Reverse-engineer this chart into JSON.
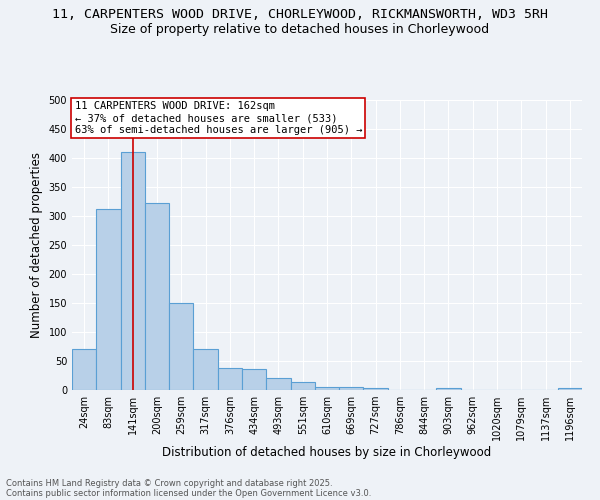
{
  "title_line1": "11, CARPENTERS WOOD DRIVE, CHORLEYWOOD, RICKMANSWORTH, WD3 5RH",
  "title_line2": "Size of property relative to detached houses in Chorleywood",
  "xlabel": "Distribution of detached houses by size in Chorleywood",
  "ylabel": "Number of detached properties",
  "categories": [
    "24sqm",
    "83sqm",
    "141sqm",
    "200sqm",
    "259sqm",
    "317sqm",
    "376sqm",
    "434sqm",
    "493sqm",
    "551sqm",
    "610sqm",
    "669sqm",
    "727sqm",
    "786sqm",
    "844sqm",
    "903sqm",
    "962sqm",
    "1020sqm",
    "1079sqm",
    "1137sqm",
    "1196sqm"
  ],
  "values": [
    70,
    312,
    410,
    323,
    150,
    70,
    38,
    37,
    20,
    13,
    6,
    6,
    3,
    0,
    0,
    3,
    0,
    0,
    0,
    0,
    3
  ],
  "bar_color": "#b8d0e8",
  "bar_edge_color": "#5a9fd4",
  "bar_linewidth": 0.8,
  "vline_x_index": 2,
  "vline_color": "#cc0000",
  "vline_linewidth": 1.2,
  "annotation_text": "11 CARPENTERS WOOD DRIVE: 162sqm\n← 37% of detached houses are smaller (533)\n63% of semi-detached houses are larger (905) →",
  "annotation_box_color": "#ffffff",
  "annotation_box_edgecolor": "#cc0000",
  "ylim": [
    0,
    500
  ],
  "yticks": [
    0,
    50,
    100,
    150,
    200,
    250,
    300,
    350,
    400,
    450,
    500
  ],
  "background_color": "#eef2f7",
  "grid_color": "#ffffff",
  "footer_line1": "Contains HM Land Registry data © Crown copyright and database right 2025.",
  "footer_line2": "Contains public sector information licensed under the Open Government Licence v3.0.",
  "title_fontsize": 9.5,
  "subtitle_fontsize": 9,
  "axis_label_fontsize": 8.5,
  "tick_fontsize": 7,
  "annotation_fontsize": 7.5,
  "footer_fontsize": 6
}
